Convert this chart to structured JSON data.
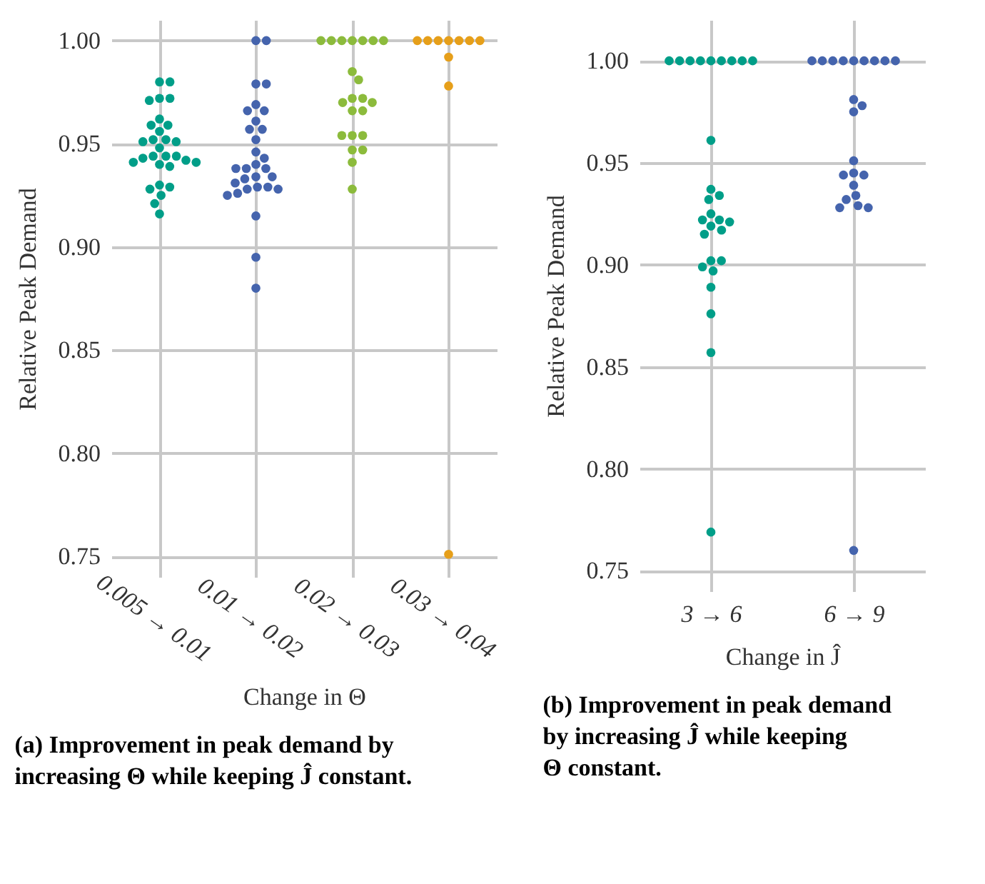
{
  "chart_data": [
    {
      "type": "scatter",
      "title": "(a) Improvement in peak demand by increasing Θ while keeping Ĵ constant.",
      "xlabel": "Change in Θ",
      "ylabel": "Relative Peak Demand",
      "categories": [
        "0.005 → 0.01",
        "0.01 → 0.02",
        "0.02 → 0.03",
        "0.03 → 0.04"
      ],
      "ylim": [
        0.74,
        1.01
      ],
      "yticks": [
        0.75,
        {
          "value": 0.8,
          "label": "0.80"
        },
        0.85,
        {
          "value": 0.9,
          "label": "0.90"
        },
        0.95,
        {
          "value": 1,
          "label": "1.00"
        }
      ],
      "grid": true,
      "series": [
        {
          "color": "#009e88",
          "x": [
            "0.005 → 0.01",
            "0.005 → 0.01",
            "0.005 → 0.01",
            "0.005 → 0.01",
            "0.005 → 0.01",
            "0.005 → 0.01",
            "0.005 → 0.01",
            "0.005 → 0.01",
            "0.005 → 0.01",
            "0.005 → 0.01",
            "0.005 → 0.01",
            "0.005 → 0.01",
            "0.005 → 0.01",
            "0.005 → 0.01",
            "0.005 → 0.01",
            "0.005 → 0.01",
            "0.005 → 0.01",
            "0.005 → 0.01",
            "0.005 → 0.01",
            "0.005 → 0.01",
            "0.005 → 0.01",
            "0.005 → 0.01",
            "0.005 → 0.01",
            "0.005 → 0.01",
            "0.005 → 0.01",
            "0.005 → 0.01",
            "0.005 → 0.01",
            "0.005 → 0.01",
            "0.005 → 0.01"
          ],
          "values": [
            0.98,
            0.98,
            0.972,
            0.972,
            0.971,
            0.962,
            0.959,
            0.959,
            0.956,
            0.952,
            0.951,
            0.951,
            0.952,
            0.948,
            0.944,
            0.944,
            0.943,
            0.942,
            0.944,
            0.941,
            0.941,
            0.94,
            0.939,
            0.93,
            0.928,
            0.929,
            0.925,
            0.921,
            0.916
          ]
        },
        {
          "color": "#4564ad",
          "x": [
            "0.01 → 0.02",
            "0.01 → 0.02",
            "0.01 → 0.02",
            "0.01 → 0.02",
            "0.01 → 0.02",
            "0.01 → 0.02",
            "0.01 → 0.02",
            "0.01 → 0.02",
            "0.01 → 0.02",
            "0.01 → 0.02",
            "0.01 → 0.02",
            "0.01 → 0.02",
            "0.01 → 0.02",
            "0.01 → 0.02",
            "0.01 → 0.02",
            "0.01 → 0.02",
            "0.01 → 0.02",
            "0.01 → 0.02",
            "0.01 → 0.02",
            "0.01 → 0.02",
            "0.01 → 0.02",
            "0.01 → 0.02",
            "0.01 → 0.02",
            "0.01 → 0.02",
            "0.01 → 0.02",
            "0.01 → 0.02",
            "0.01 → 0.02",
            "0.01 → 0.02",
            "0.01 → 0.02",
            "0.01 → 0.02"
          ],
          "values": [
            1.0,
            1.0,
            0.979,
            0.979,
            0.969,
            0.966,
            0.966,
            0.961,
            0.957,
            0.957,
            0.952,
            0.946,
            0.943,
            0.94,
            0.938,
            0.938,
            0.938,
            0.934,
            0.934,
            0.933,
            0.931,
            0.929,
            0.929,
            0.928,
            0.928,
            0.926,
            0.925,
            0.915,
            0.895,
            0.88
          ]
        },
        {
          "color": "#8cbb3c",
          "x": [
            "0.02 → 0.03",
            "0.02 → 0.03",
            "0.02 → 0.03",
            "0.02 → 0.03",
            "0.02 → 0.03",
            "0.02 → 0.03",
            "0.02 → 0.03",
            "0.02 → 0.03",
            "0.02 → 0.03",
            "0.02 → 0.03",
            "0.02 → 0.03",
            "0.02 → 0.03",
            "0.02 → 0.03",
            "0.02 → 0.03",
            "0.02 → 0.03",
            "0.02 → 0.03",
            "0.02 → 0.03",
            "0.02 → 0.03",
            "0.02 → 0.03",
            "0.02 → 0.03",
            "0.02 → 0.03",
            "0.02 → 0.03"
          ],
          "values": [
            1.0,
            1.0,
            1.0,
            1.0,
            1.0,
            1.0,
            1.0,
            0.985,
            0.981,
            0.972,
            0.97,
            0.966,
            0.966,
            0.97,
            0.972,
            0.954,
            0.954,
            0.954,
            0.947,
            0.947,
            0.941,
            0.928
          ]
        },
        {
          "color": "#e69f1a",
          "x": [
            "0.03 → 0.04",
            "0.03 → 0.04",
            "0.03 → 0.04",
            "0.03 → 0.04",
            "0.03 → 0.04",
            "0.03 → 0.04",
            "0.03 → 0.04",
            "0.03 → 0.04",
            "0.03 → 0.04",
            "0.03 → 0.04"
          ],
          "values": [
            1.0,
            1.0,
            1.0,
            1.0,
            1.0,
            1.0,
            1.0,
            0.992,
            0.978,
            0.751
          ]
        }
      ]
    },
    {
      "type": "scatter",
      "title": "(b) Improvement in peak demand by increasing Ĵ while keeping Θ constant.",
      "xlabel": "Change in Ĵ",
      "ylabel": "Relative Peak Demand",
      "categories": [
        "3 → 6",
        "6 → 9"
      ],
      "ylim": [
        0.74,
        1.02
      ],
      "yticks": [
        0.75,
        {
          "value": 0.8,
          "label": "0.80"
        },
        0.85,
        {
          "value": 0.9,
          "label": "0.90"
        },
        0.95,
        {
          "value": 1,
          "label": "1.00"
        }
      ],
      "grid": true,
      "series": [
        {
          "color": "#009e88",
          "x": [
            "3 → 6",
            "3 → 6",
            "3 → 6",
            "3 → 6",
            "3 → 6",
            "3 → 6",
            "3 → 6",
            "3 → 6",
            "3 → 6",
            "3 → 6",
            "3 → 6",
            "3 → 6",
            "3 → 6",
            "3 → 6",
            "3 → 6",
            "3 → 6",
            "3 → 6",
            "3 → 6",
            "3 → 6",
            "3 → 6",
            "3 → 6",
            "3 → 6",
            "3 → 6",
            "3 → 6",
            "3 → 6",
            "3 → 6",
            "3 → 6",
            "3 → 6"
          ],
          "values": [
            1.0,
            1.0,
            1.0,
            1.0,
            1.0,
            1.0,
            1.0,
            1.0,
            1.0,
            0.961,
            0.937,
            0.934,
            0.932,
            0.925,
            0.922,
            0.922,
            0.921,
            0.919,
            0.917,
            0.915,
            0.902,
            0.902,
            0.899,
            0.897,
            0.889,
            0.876,
            0.857,
            0.769
          ]
        },
        {
          "color": "#4564ad",
          "x": [
            "6 → 9",
            "6 → 9",
            "6 → 9",
            "6 → 9",
            "6 → 9",
            "6 → 9",
            "6 → 9",
            "6 → 9",
            "6 → 9",
            "6 → 9",
            "6 → 9",
            "6 → 9",
            "6 → 9",
            "6 → 9",
            "6 → 9",
            "6 → 9",
            "6 → 9",
            "6 → 9",
            "6 → 9",
            "6 → 9",
            "6 → 9",
            "6 → 9",
            "6 → 9"
          ],
          "values": [
            1.0,
            1.0,
            1.0,
            1.0,
            1.0,
            1.0,
            1.0,
            1.0,
            1.0,
            0.981,
            0.978,
            0.975,
            0.951,
            0.945,
            0.944,
            0.944,
            0.939,
            0.934,
            0.932,
            0.929,
            0.928,
            0.928,
            0.76
          ]
        }
      ]
    }
  ]
}
